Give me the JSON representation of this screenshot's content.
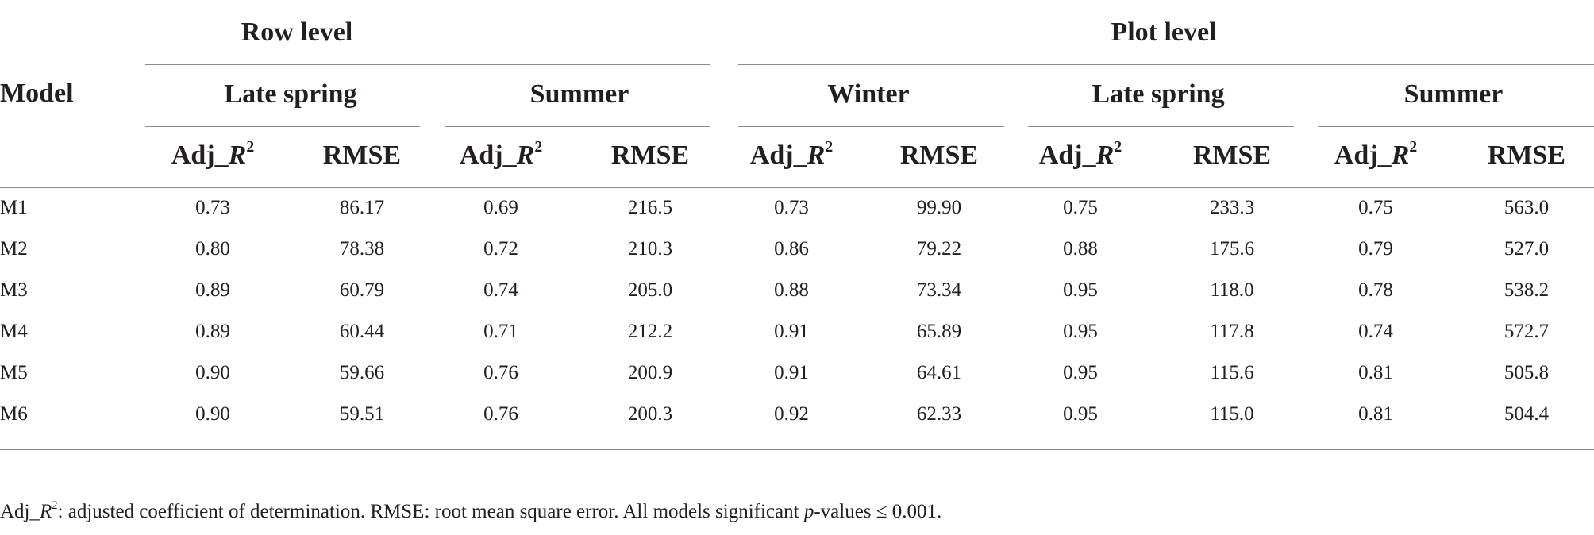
{
  "table": {
    "stub_header": "Model",
    "groups": [
      {
        "label": "Row level"
      },
      {
        "label": "Plot level"
      }
    ],
    "seasons": [
      {
        "label": "Late spring"
      },
      {
        "label": "Summer"
      },
      {
        "label": "Winter"
      },
      {
        "label": "Late spring"
      },
      {
        "label": "Summer"
      }
    ],
    "metrics": {
      "adj_prefix": "Adj_",
      "adj_var": "R",
      "adj_sup": "2",
      "rmse": "RMSE"
    },
    "rows": [
      {
        "model": "M1",
        "values": [
          "0.73",
          "86.17",
          "0.69",
          "216.5",
          "0.73",
          "99.90",
          "0.75",
          "233.3",
          "0.75",
          "563.0"
        ]
      },
      {
        "model": "M2",
        "values": [
          "0.80",
          "78.38",
          "0.72",
          "210.3",
          "0.86",
          "79.22",
          "0.88",
          "175.6",
          "0.79",
          "527.0"
        ]
      },
      {
        "model": "M3",
        "values": [
          "0.89",
          "60.79",
          "0.74",
          "205.0",
          "0.88",
          "73.34",
          "0.95",
          "118.0",
          "0.78",
          "538.2"
        ]
      },
      {
        "model": "M4",
        "values": [
          "0.89",
          "60.44",
          "0.71",
          "212.2",
          "0.91",
          "65.89",
          "0.95",
          "117.8",
          "0.74",
          "572.7"
        ]
      },
      {
        "model": "M5",
        "values": [
          "0.90",
          "59.66",
          "0.76",
          "200.9",
          "0.91",
          "64.61",
          "0.95",
          "115.6",
          "0.81",
          "505.8"
        ]
      },
      {
        "model": "M6",
        "values": [
          "0.90",
          "59.51",
          "0.76",
          "200.3",
          "0.92",
          "62.33",
          "0.95",
          "115.0",
          "0.81",
          "504.4"
        ]
      }
    ]
  },
  "footnote": {
    "adj_prefix": "Adj_",
    "adj_var": "R",
    "adj_sup": "2",
    "part1": ": adjusted coefficient of determination. RMSE: root mean square error. All models significant ",
    "p_var": "p",
    "part2": "-values ≤ 0.001."
  }
}
